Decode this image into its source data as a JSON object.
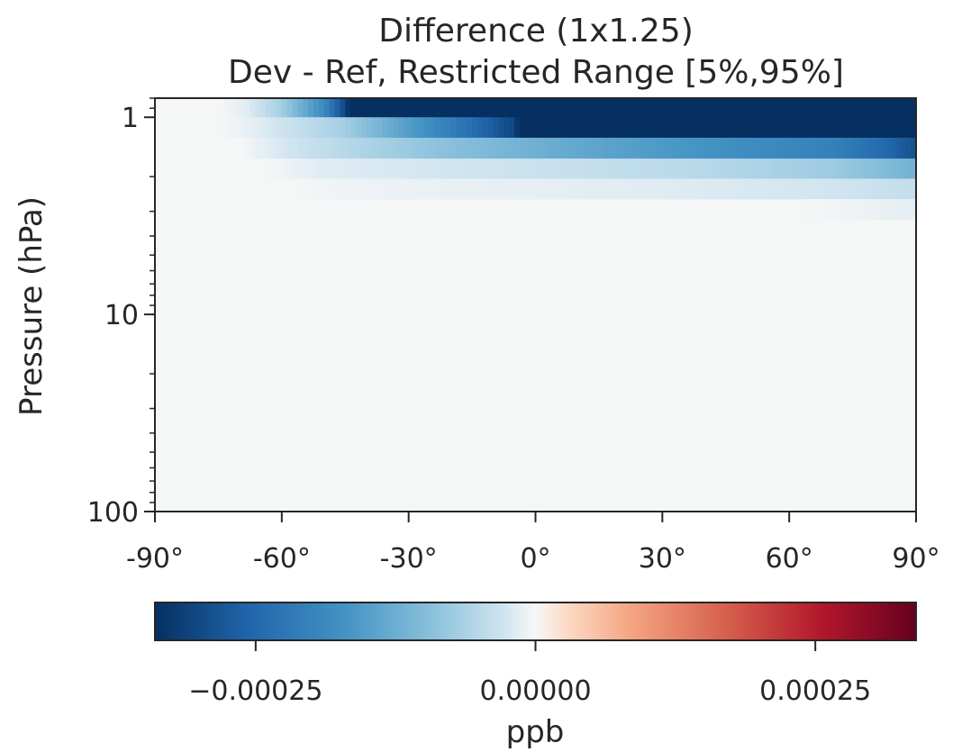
{
  "chart_data": {
    "type": "heatmap",
    "title_line1": "Difference (1x1.25)",
    "title_line2": "Dev - Ref, Restricted Range [5%,95%]",
    "ylabel": "Pressure (hPa)",
    "yscale": "log",
    "xlim": [
      -90,
      90
    ],
    "ylim": [
      100,
      0.8
    ],
    "x_ticks": [
      -90,
      -60,
      -30,
      0,
      30,
      60,
      90
    ],
    "x_tick_labels": [
      "-90°",
      "-60°",
      "-30°",
      "0°",
      "30°",
      "60°",
      "90°"
    ],
    "y_ticks": [
      1,
      10,
      100
    ],
    "y_tick_labels": [
      "1",
      "10",
      "100"
    ],
    "colorbar": {
      "label": "ppb",
      "vmin": -0.00034,
      "vmax": 0.00034,
      "colormap": "RdBu_r",
      "ticks": [
        -0.00025,
        0,
        0.00025
      ],
      "tick_labels": [
        "−0.00025",
        "0.00000",
        "0.00025"
      ]
    },
    "rows": [
      {
        "p_top": 0.8,
        "p_bottom": 1.0,
        "ramp": [
          [
            -90,
            0
          ],
          [
            -75,
            0
          ],
          [
            -68,
            -0.05
          ],
          [
            -60,
            -0.2
          ],
          [
            -50,
            -0.55
          ],
          [
            -45,
            -0.9
          ],
          [
            -44,
            -1.0
          ],
          [
            90,
            -1.0
          ]
        ]
      },
      {
        "p_top": 1.0,
        "p_bottom": 1.27,
        "ramp": [
          [
            -90,
            0
          ],
          [
            -75,
            0
          ],
          [
            -65,
            -0.05
          ],
          [
            -45,
            -0.2
          ],
          [
            -30,
            -0.45
          ],
          [
            -15,
            -0.7
          ],
          [
            -5,
            -0.9
          ],
          [
            -4,
            -1.0
          ],
          [
            90,
            -1.0
          ]
        ]
      },
      {
        "p_top": 1.27,
        "p_bottom": 1.62,
        "ramp": [
          [
            -90,
            0
          ],
          [
            -70,
            0
          ],
          [
            -55,
            -0.1
          ],
          [
            -20,
            -0.28
          ],
          [
            10,
            -0.4
          ],
          [
            40,
            -0.5
          ],
          [
            70,
            -0.6
          ],
          [
            82,
            -0.72
          ],
          [
            90,
            -0.85
          ]
        ]
      },
      {
        "p_top": 1.62,
        "p_bottom": 2.05,
        "ramp": [
          [
            -90,
            0
          ],
          [
            -65,
            0
          ],
          [
            -50,
            -0.05
          ],
          [
            0,
            -0.1
          ],
          [
            40,
            -0.15
          ],
          [
            70,
            -0.22
          ],
          [
            90,
            -0.35
          ]
        ]
      },
      {
        "p_top": 2.05,
        "p_bottom": 2.6,
        "ramp": [
          [
            -90,
            0
          ],
          [
            -60,
            0
          ],
          [
            -45,
            -0.02
          ],
          [
            30,
            -0.05
          ],
          [
            70,
            -0.08
          ],
          [
            90,
            -0.12
          ]
        ]
      },
      {
        "p_top": 2.6,
        "p_bottom": 3.3,
        "ramp": [
          [
            -90,
            0
          ],
          [
            60,
            0
          ],
          [
            90,
            -0.04
          ]
        ]
      }
    ]
  }
}
